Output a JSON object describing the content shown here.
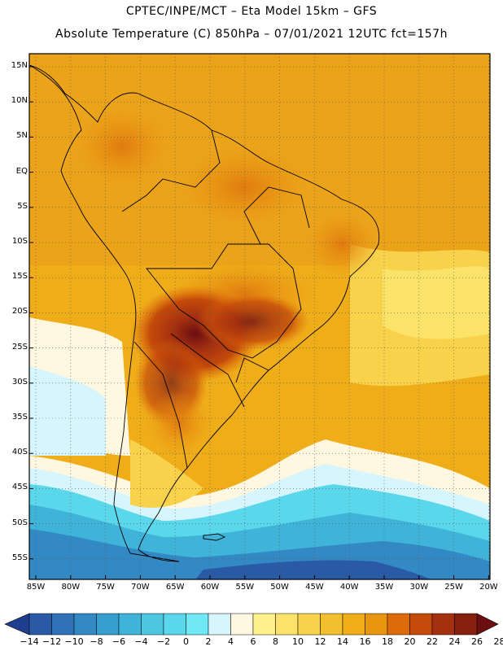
{
  "header": {
    "title_line1": "CPTEC/INPE/MCT –  Eta Model 15km – GFS",
    "title_line2": "Absolute Temperature (C) 850hPa – 07/01/2021 12UTC fct=157h"
  },
  "map": {
    "lat_labels": [
      "15N",
      "10N",
      "5N",
      "EQ",
      "5S",
      "10S",
      "15S",
      "20S",
      "25S",
      "30S",
      "35S",
      "40S",
      "45S",
      "50S",
      "55S"
    ],
    "lon_labels": [
      "85W",
      "80W",
      "75W",
      "70W",
      "65W",
      "60W",
      "55W",
      "50W",
      "45W",
      "40W",
      "35W",
      "30W",
      "25W",
      "20W"
    ]
  },
  "colorbar": {
    "labels": [
      "-14",
      "-12",
      "-10",
      "-8",
      "-6",
      "-4",
      "-2",
      "0",
      "2",
      "4",
      "6",
      "8",
      "10",
      "12",
      "14",
      "16",
      "18",
      "20",
      "22",
      "24",
      "26",
      "28"
    ],
    "colors": [
      "#1f3e8f",
      "#2a5aa6",
      "#2f73b6",
      "#3289c3",
      "#379fcf",
      "#3fb3d8",
      "#4dc6e2",
      "#5bd7ec",
      "#6fe9f6",
      "#d6f5fc",
      "#fff7e0",
      "#fff28c",
      "#fbe36a",
      "#f7d24a",
      "#f2bf2e",
      "#efad1a",
      "#e9960f",
      "#dd6b09",
      "#c44a0a",
      "#a53010",
      "#86200f",
      "#6b0f12"
    ]
  }
}
